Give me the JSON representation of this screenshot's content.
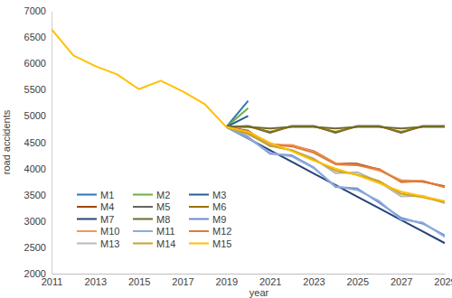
{
  "chart_data": {
    "type": "line",
    "x_label": "year",
    "y_label": "road accidents",
    "x": [
      2011,
      2012,
      2013,
      2014,
      2015,
      2016,
      2017,
      2018,
      2019,
      2020,
      2021,
      2022,
      2023,
      2024,
      2025,
      2026,
      2027,
      2028,
      2029
    ],
    "xlim": [
      2011,
      2029
    ],
    "xticks": [
      2011,
      2013,
      2015,
      2017,
      2019,
      2021,
      2023,
      2025,
      2027,
      2029
    ],
    "ylim": [
      2000,
      7000
    ],
    "yticks": [
      2000,
      2500,
      3000,
      3500,
      4000,
      4500,
      5000,
      5500,
      6000,
      6500,
      7000
    ],
    "grid": false,
    "legend": "lower left",
    "series": [
      {
        "name": "M1",
        "color": "#2e75b6",
        "values": [
          null,
          null,
          null,
          null,
          null,
          null,
          null,
          null,
          4790,
          5290,
          null,
          null,
          null,
          null,
          null,
          null,
          null,
          null,
          null
        ]
      },
      {
        "name": "M2",
        "color": "#70ad47",
        "values": [
          null,
          null,
          null,
          null,
          null,
          null,
          null,
          null,
          4790,
          5150,
          null,
          null,
          null,
          null,
          null,
          null,
          null,
          null,
          null
        ]
      },
      {
        "name": "M3",
        "color": "#255e91",
        "values": [
          null,
          null,
          null,
          null,
          null,
          null,
          null,
          null,
          4790,
          5000,
          null,
          null,
          null,
          null,
          null,
          null,
          null,
          null,
          null
        ]
      },
      {
        "name": "M4",
        "color": "#9e480e",
        "values": [
          null,
          null,
          null,
          null,
          null,
          null,
          null,
          null,
          4790,
          4720,
          4430,
          4440,
          4330,
          4100,
          4090,
          3980,
          3760,
          3750,
          3660
        ]
      },
      {
        "name": "M5",
        "color": "#636363",
        "values": [
          null,
          null,
          null,
          null,
          null,
          null,
          null,
          null,
          4790,
          4810,
          4680,
          4810,
          4810,
          4680,
          4810,
          4810,
          4680,
          4810,
          4810
        ]
      },
      {
        "name": "M6",
        "color": "#997300",
        "values": [
          null,
          null,
          null,
          null,
          null,
          null,
          null,
          null,
          4790,
          4800,
          4700,
          4800,
          4800,
          4700,
          4800,
          4800,
          4700,
          4800,
          4800
        ]
      },
      {
        "name": "M7",
        "color": "#264478",
        "values": [
          null,
          null,
          null,
          null,
          null,
          null,
          null,
          null,
          4790,
          4569,
          4348,
          4127,
          3906,
          3685,
          3464,
          3243,
          3022,
          2801,
          2580
        ]
      },
      {
        "name": "M8",
        "color": "#6b6b2e",
        "values": [
          null,
          null,
          null,
          null,
          null,
          null,
          null,
          null,
          4790,
          4790,
          4760,
          4790,
          4790,
          4760,
          4790,
          4790,
          4760,
          4790,
          4790
        ]
      },
      {
        "name": "M9",
        "color": "#698ed0",
        "values": [
          null,
          null,
          null,
          null,
          null,
          null,
          null,
          null,
          4790,
          4600,
          4280,
          4250,
          4020,
          3650,
          3620,
          3350,
          3060,
          2950,
          2730
        ]
      },
      {
        "name": "M10",
        "color": "#f1975a",
        "values": [
          null,
          null,
          null,
          null,
          null,
          null,
          null,
          null,
          4790,
          4700,
          4450,
          4450,
          4320,
          4100,
          4070,
          3960,
          3780,
          3760,
          3640
        ]
      },
      {
        "name": "M11",
        "color": "#8faadc",
        "values": [
          null,
          null,
          null,
          null,
          null,
          null,
          null,
          null,
          4790,
          4580,
          4300,
          4230,
          4010,
          3660,
          3590,
          3380,
          3030,
          2970,
          2700
        ]
      },
      {
        "name": "M12",
        "color": "#e07b39",
        "values": [
          null,
          null,
          null,
          null,
          null,
          null,
          null,
          null,
          4790,
          4680,
          4470,
          4420,
          4300,
          4080,
          4060,
          3990,
          3740,
          3760,
          3650
        ]
      },
      {
        "name": "M13",
        "color": "#b7b7b7",
        "values": [
          null,
          null,
          null,
          null,
          null,
          null,
          null,
          null,
          4790,
          4650,
          4450,
          4340,
          4190,
          3910,
          3930,
          3740,
          3470,
          3480,
          3340
        ]
      },
      {
        "name": "M14",
        "color": "#c9a227",
        "values": [
          null,
          null,
          null,
          null,
          null,
          null,
          null,
          null,
          4790,
          4660,
          4430,
          4350,
          4170,
          3960,
          3880,
          3760,
          3520,
          3450,
          3360
        ]
      },
      {
        "name": "M15",
        "color": "#ffc000",
        "values": [
          6650,
          6150,
          5950,
          5790,
          5510,
          5670,
          5470,
          5230,
          4790,
          4700,
          4490,
          4330,
          4150,
          4000,
          3870,
          3720,
          3560,
          3470,
          3380
        ]
      }
    ]
  }
}
